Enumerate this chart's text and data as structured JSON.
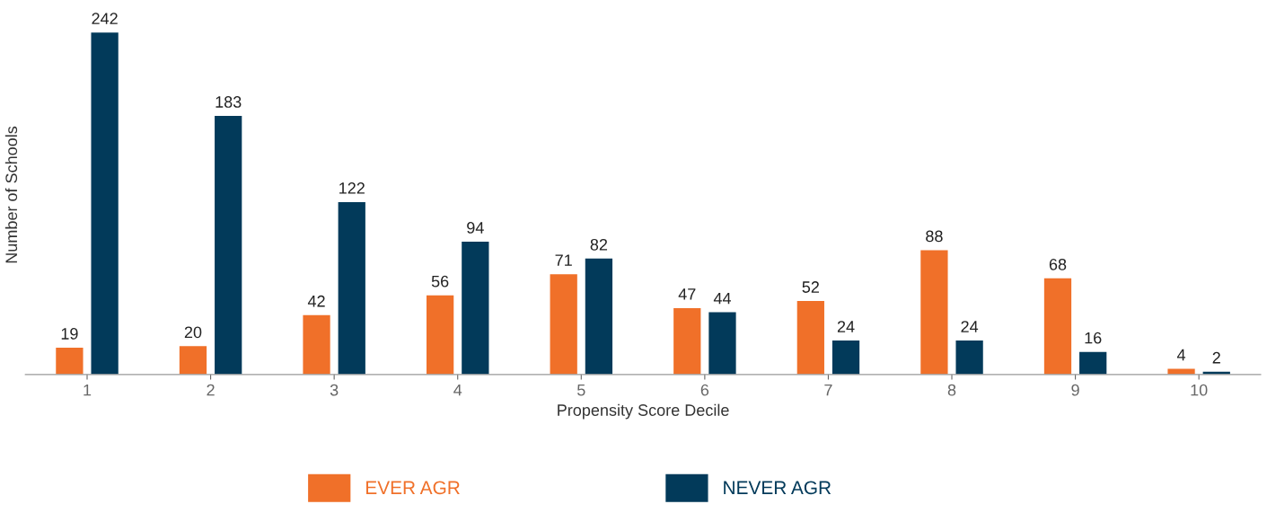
{
  "chart_data": {
    "type": "bar",
    "xlabel": "Propensity Score Decile",
    "ylabel": "Number of Schools",
    "categories": [
      "1",
      "2",
      "3",
      "4",
      "5",
      "6",
      "7",
      "8",
      "9",
      "10"
    ],
    "series": [
      {
        "name": "EVER AGR",
        "color": "#f07029",
        "values": [
          19,
          20,
          42,
          56,
          71,
          47,
          52,
          88,
          68,
          4
        ]
      },
      {
        "name": "NEVER AGR",
        "color": "#023a5a",
        "values": [
          242,
          183,
          122,
          94,
          82,
          44,
          24,
          24,
          16,
          2
        ]
      }
    ],
    "data_labels": true,
    "legend": "bottom",
    "grid": false,
    "tick_labels": "x"
  }
}
